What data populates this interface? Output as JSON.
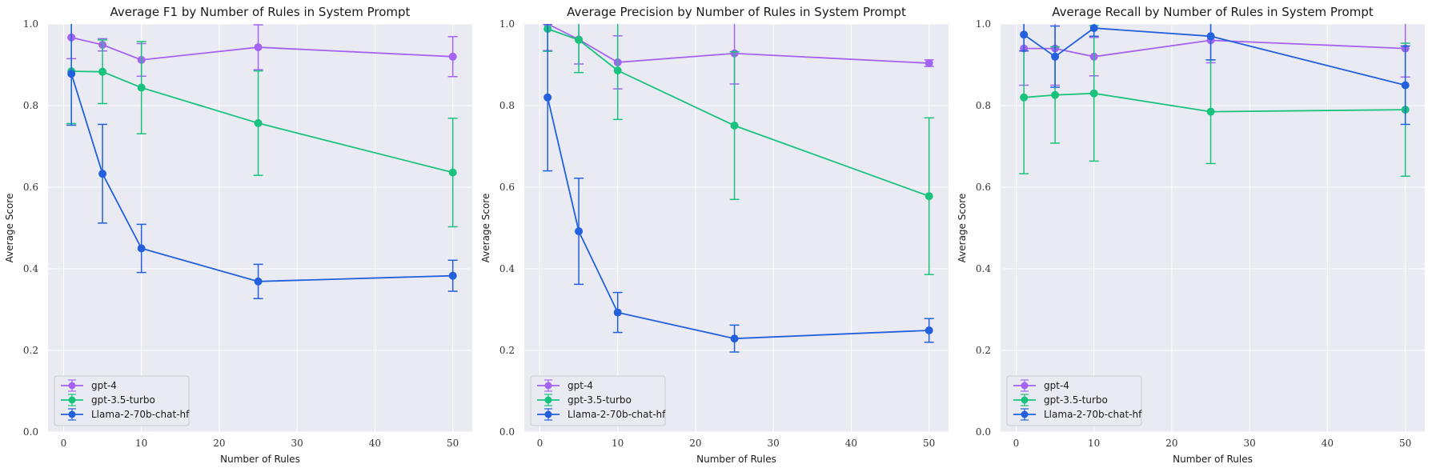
{
  "style": {
    "plot_bg": "#eaeaf2",
    "grid": "#ffffff",
    "legend_bg": "#eaeaf2",
    "legend_border": "#cccccc"
  },
  "chart_data": [
    {
      "type": "line",
      "title": "Average F1 by Number of Rules in System Prompt",
      "xlabel": "Number of Rules",
      "ylabel": "Average Score",
      "xlim": [
        -2,
        52.5
      ],
      "ylim": [
        0,
        1
      ],
      "xticks": [
        0,
        10,
        20,
        30,
        40,
        50
      ],
      "yticks": [
        "0.0",
        "0.2",
        "0.4",
        "0.6",
        "0.8",
        "1.0"
      ],
      "grid": true,
      "legend_position": "lower-left",
      "x": [
        1,
        5,
        10,
        25,
        50
      ],
      "series": [
        {
          "name": "gpt-4",
          "color": "#a463f2",
          "values": [
            0.967,
            0.949,
            0.912,
            0.943,
            0.92
          ],
          "errors": [
            0.052,
            0.015,
            0.04,
            0.055,
            0.049
          ]
        },
        {
          "name": "gpt-3.5-turbo",
          "color": "#19c37d",
          "values": [
            0.884,
            0.883,
            0.844,
            0.757,
            0.636
          ],
          "errors": [
            0.128,
            0.078,
            0.113,
            0.128,
            0.133
          ]
        },
        {
          "name": "Llama-2-70b-chat-hf",
          "color": "#2260dd",
          "values": [
            0.878,
            0.633,
            0.45,
            0.369,
            0.383
          ],
          "errors": [
            0.126,
            0.121,
            0.059,
            0.042,
            0.038
          ]
        }
      ]
    },
    {
      "type": "line",
      "title": "Average Precision by Number of Rules in System Prompt",
      "xlabel": "Number of Rules",
      "ylabel": "Average Score",
      "xlim": [
        -2,
        52.5
      ],
      "ylim": [
        0,
        1
      ],
      "xticks": [
        0,
        10,
        20,
        30,
        40,
        50
      ],
      "yticks": [
        "0.0",
        "0.2",
        "0.4",
        "0.6",
        "0.8",
        "1.0"
      ],
      "grid": true,
      "legend_position": "lower-left",
      "x": [
        1,
        5,
        10,
        25,
        50
      ],
      "series": [
        {
          "name": "gpt-4",
          "color": "#a463f2",
          "values": [
            1.0,
            0.962,
            0.906,
            0.928,
            0.904
          ],
          "errors": [
            0.065,
            0.06,
            0.065,
            0.075,
            0.008
          ]
        },
        {
          "name": "gpt-3.5-turbo",
          "color": "#19c37d",
          "values": [
            0.988,
            0.961,
            0.886,
            0.751,
            0.578
          ],
          "errors": [
            0.055,
            0.08,
            0.12,
            0.181,
            0.192
          ]
        },
        {
          "name": "Llama-2-70b-chat-hf",
          "color": "#2260dd",
          "values": [
            0.82,
            0.492,
            0.293,
            0.229,
            0.249
          ],
          "errors": [
            0.18,
            0.13,
            0.049,
            0.033,
            0.029
          ]
        }
      ]
    },
    {
      "type": "line",
      "title": "Average Recall by Number of Rules in System Prompt",
      "xlabel": "Number of Rules",
      "ylabel": "Average Score",
      "xlim": [
        -2,
        52.5
      ],
      "ylim": [
        0,
        1
      ],
      "xticks": [
        0,
        10,
        20,
        30,
        40,
        50
      ],
      "yticks": [
        "0.0",
        "0.2",
        "0.4",
        "0.6",
        "0.8",
        "1.0"
      ],
      "grid": true,
      "legend_position": "lower-left",
      "x": [
        1,
        5,
        10,
        25,
        50
      ],
      "series": [
        {
          "name": "gpt-4",
          "color": "#a463f2",
          "values": [
            0.94,
            0.94,
            0.92,
            0.96,
            0.94
          ],
          "errors": [
            0.09,
            0.09,
            0.047,
            0.055,
            0.07
          ]
        },
        {
          "name": "gpt-3.5-turbo",
          "color": "#19c37d",
          "values": [
            0.82,
            0.826,
            0.83,
            0.785,
            0.79
          ],
          "errors": [
            0.187,
            0.118,
            0.166,
            0.127,
            0.163
          ]
        },
        {
          "name": "Llama-2-70b-chat-hf",
          "color": "#2260dd",
          "values": [
            0.974,
            0.92,
            0.99,
            0.97,
            0.85
          ],
          "errors": [
            0.04,
            0.075,
            0.02,
            0.058,
            0.096
          ]
        }
      ]
    }
  ]
}
